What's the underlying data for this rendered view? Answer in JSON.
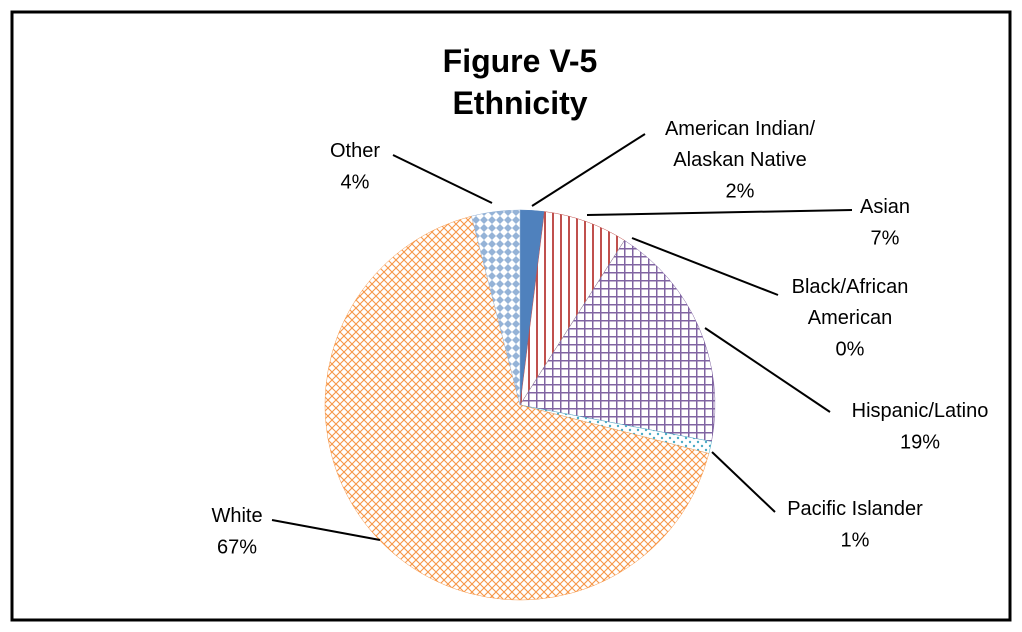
{
  "chart_data": {
    "type": "pie",
    "title": "Figure V-5",
    "subtitle": "Ethnicity",
    "categories": [
      "American Indian/\nAlaskan Native",
      "Asian",
      "Black/African\nAmerican",
      "Hispanic/Latino",
      "Pacific Islander",
      "White",
      "Other"
    ],
    "values": [
      2,
      7,
      0,
      19,
      1,
      67,
      4
    ],
    "value_labels": [
      "2%",
      "7%",
      "0%",
      "19%",
      "1%",
      "67%",
      "4%"
    ],
    "colors": [
      "#4f81bd",
      "#c0504d",
      "#9bbb59",
      "#8064a2",
      "#4bacc6",
      "#f79646",
      "#95b3d7"
    ]
  }
}
